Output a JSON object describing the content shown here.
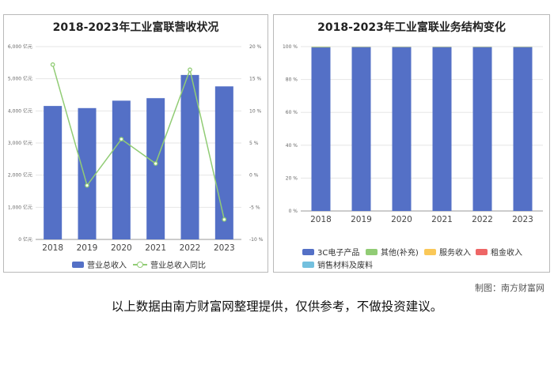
{
  "chart_data": [
    {
      "type": "bar",
      "title": "2018-2023年工业富联营收状况",
      "categories": [
        "2018",
        "2019",
        "2020",
        "2021",
        "2022",
        "2023"
      ],
      "series": [
        {
          "name": "营业总收入",
          "type": "bar",
          "axis": "left",
          "color": "#5470c6",
          "values": [
            4153,
            4087,
            4318,
            4396,
            5118,
            4763
          ]
        },
        {
          "name": "营业总收入同比",
          "type": "line",
          "axis": "right",
          "color": "#91cc75",
          "values": [
            17.2,
            -1.6,
            5.6,
            1.8,
            16.4,
            -6.9
          ]
        }
      ],
      "ylim": [
        0,
        6000
      ],
      "y_ticks": [
        "0 亿元",
        "1,000 亿元",
        "2,000 亿元",
        "3,000 亿元",
        "4,000 亿元",
        "5,000 亿元",
        "6,000 亿元"
      ],
      "y2lim": [
        -10,
        20
      ],
      "y2_ticks": [
        "-10 %",
        "-5 %",
        "0 %",
        "5 %",
        "10 %",
        "15 %",
        "20 %"
      ],
      "grid": true,
      "legend_position": "bottom"
    },
    {
      "type": "bar",
      "stacked": true,
      "title": "2018-2023年工业富联业务结构变化",
      "categories": [
        "2018",
        "2019",
        "2020",
        "2021",
        "2022",
        "2023"
      ],
      "series": [
        {
          "name": "3C电子产品",
          "color": "#5470c6",
          "values": [
            99.5,
            99.7,
            99.7,
            99.7,
            99.7,
            99.7
          ]
        },
        {
          "name": "其他(补充)",
          "color": "#91cc75",
          "values": [
            0.3,
            0.2,
            0.2,
            0.2,
            0.2,
            0.2
          ]
        },
        {
          "name": "服务收入",
          "color": "#fac858",
          "values": [
            0.1,
            0.05,
            0.05,
            0.05,
            0.05,
            0.05
          ]
        },
        {
          "name": "租金收入",
          "color": "#ee6666",
          "values": [
            0.05,
            0.03,
            0.03,
            0.03,
            0.03,
            0.03
          ]
        },
        {
          "name": "销售材料及废料",
          "color": "#73c0de",
          "values": [
            0.05,
            0.02,
            0.02,
            0.02,
            0.02,
            0.02
          ]
        }
      ],
      "ylim": [
        0,
        100
      ],
      "y_ticks": [
        "0 %",
        "20 %",
        "40 %",
        "60 %",
        "80 %",
        "100 %"
      ],
      "grid": true,
      "legend_position": "bottom"
    }
  ],
  "source_note": "制图：南方财富网",
  "footer": "以上数据由南方财富网整理提供，仅供参考，不做投资建议。"
}
